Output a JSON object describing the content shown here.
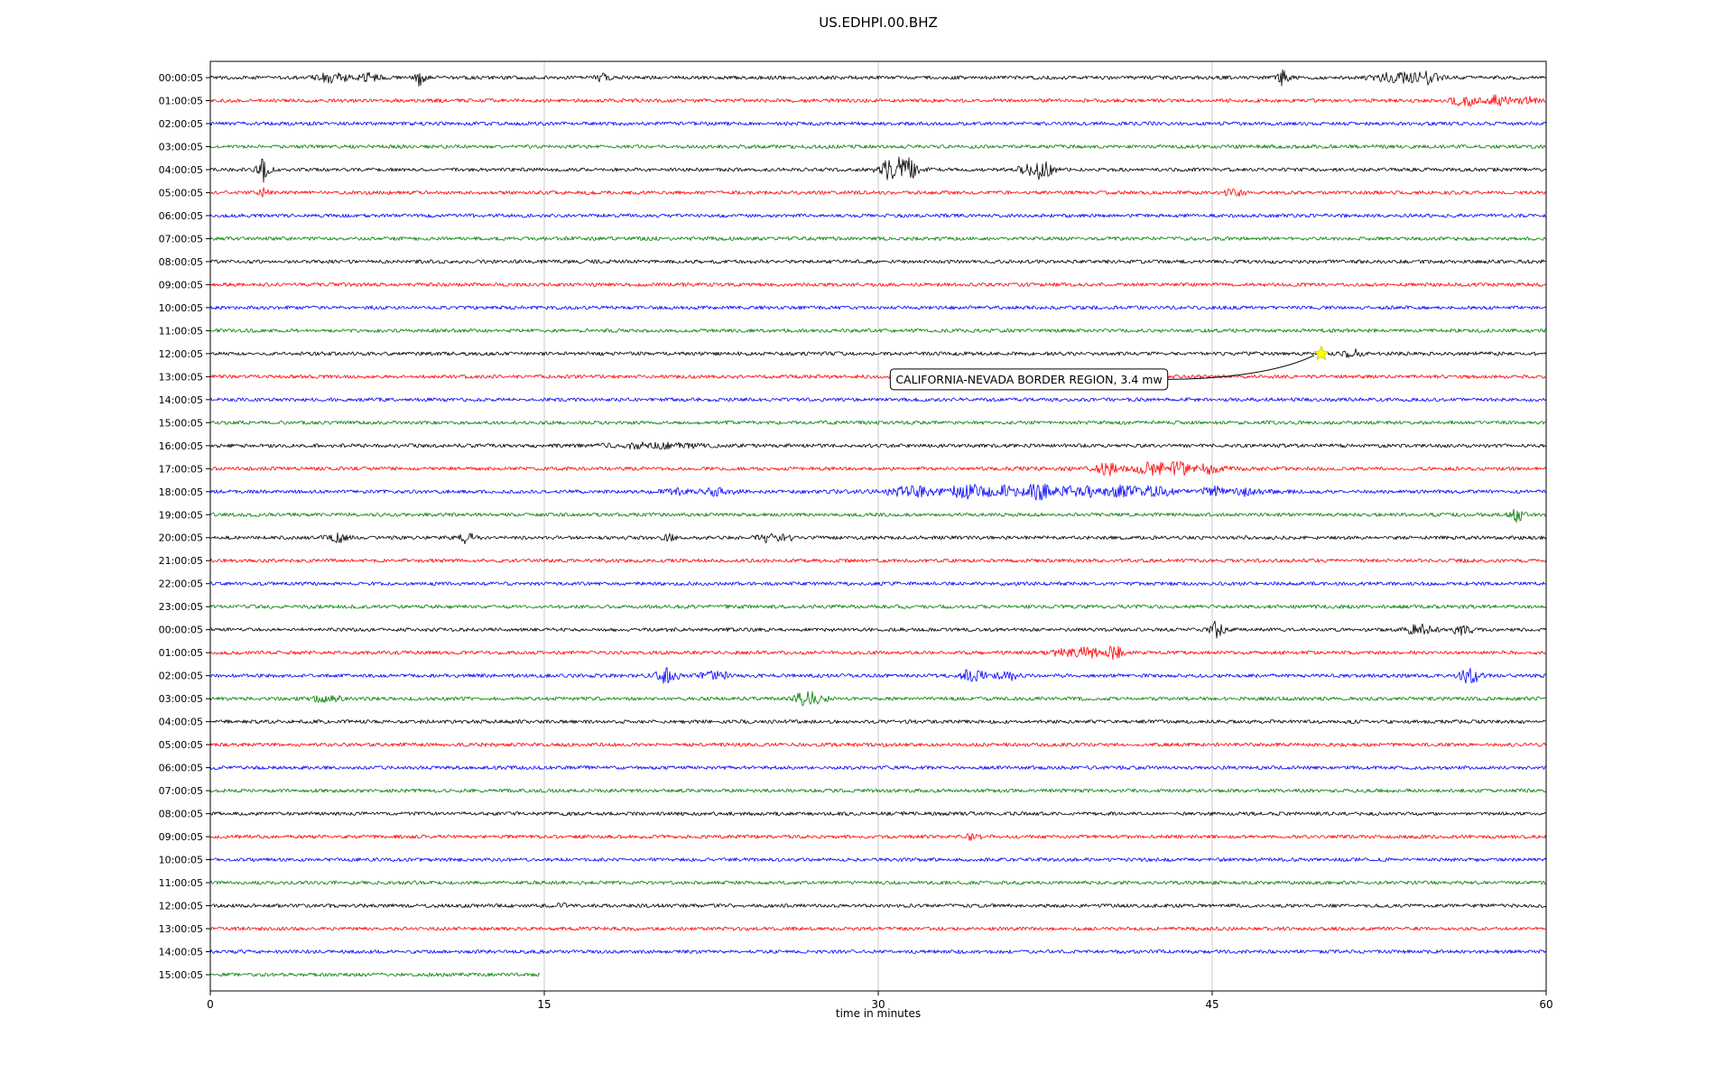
{
  "chart_data": {
    "type": "line",
    "subtype": "seismogram-dayplot",
    "title": "US.EDHPI.00.BHZ",
    "xlabel": "time in minutes",
    "xlim": [
      0,
      60
    ],
    "xticks": [
      0,
      15,
      30,
      45,
      60
    ],
    "gridlines": [
      15,
      30,
      45
    ],
    "grid_color": "#c8c8c8",
    "trace_colors_cycle": [
      "#000000",
      "#ff0000",
      "#0000ff",
      "#008000"
    ],
    "annotation": {
      "text": "CALIFORNIA-NEVADA BORDER REGION, 3.4 mw",
      "box_row": 13,
      "box_minute": 30.5,
      "star_row": 12,
      "star_minute": 49.9,
      "star_color": "#ffff00",
      "star_edge_color": "#c8c800"
    },
    "rows": [
      {
        "label": "00:00:05",
        "color": "#000000",
        "events": [
          {
            "m": 5.5,
            "a": 5,
            "w": 0.5
          },
          {
            "m": 7.2,
            "a": 4,
            "w": 0.3
          },
          {
            "m": 9.4,
            "a": 10,
            "w": 0.15
          },
          {
            "m": 17.6,
            "a": 3.5,
            "w": 0.2
          },
          {
            "m": 48.2,
            "a": 8,
            "w": 0.18
          },
          {
            "m": 53.3,
            "a": 5,
            "w": 0.7
          },
          {
            "m": 54.6,
            "a": 6,
            "w": 0.4
          }
        ]
      },
      {
        "label": "01:00:05",
        "color": "#ff0000",
        "events": [
          {
            "m": 56.3,
            "a": 6,
            "w": 0.35
          },
          {
            "m": 57.9,
            "a": 5,
            "w": 0.45
          },
          {
            "m": 59.2,
            "a": 3.5,
            "w": 0.3
          }
        ]
      },
      {
        "label": "02:00:05",
        "color": "#0000ff",
        "events": []
      },
      {
        "label": "03:00:05",
        "color": "#008000",
        "events": []
      },
      {
        "label": "04:00:05",
        "color": "#000000",
        "events": [
          {
            "m": 2.4,
            "a": 13,
            "w": 0.18
          },
          {
            "m": 30.7,
            "a": 12,
            "w": 0.45
          },
          {
            "m": 31.4,
            "a": 8,
            "w": 0.3
          },
          {
            "m": 36.9,
            "a": 8,
            "w": 0.35
          },
          {
            "m": 37.5,
            "a": 6,
            "w": 0.3
          }
        ]
      },
      {
        "label": "05:00:05",
        "color": "#ff0000",
        "events": [
          {
            "m": 2.4,
            "a": 4,
            "w": 0.15
          },
          {
            "m": 46.0,
            "a": 3.5,
            "w": 0.3
          }
        ]
      },
      {
        "label": "06:00:05",
        "color": "#0000ff",
        "events": []
      },
      {
        "label": "07:00:05",
        "color": "#008000",
        "events": []
      },
      {
        "label": "08:00:05",
        "color": "#000000",
        "events": []
      },
      {
        "label": "09:00:05",
        "color": "#ff0000",
        "events": []
      },
      {
        "label": "10:00:05",
        "color": "#0000ff",
        "events": []
      },
      {
        "label": "11:00:05",
        "color": "#008000",
        "events": []
      },
      {
        "label": "12:00:05",
        "color": "#000000",
        "events": [
          {
            "m": 51.3,
            "a": 4,
            "w": 0.3
          }
        ]
      },
      {
        "label": "13:00:05",
        "color": "#ff0000",
        "events": []
      },
      {
        "label": "14:00:05",
        "color": "#0000ff",
        "events": []
      },
      {
        "label": "15:00:05",
        "color": "#008000",
        "events": []
      },
      {
        "label": "16:00:05",
        "color": "#000000",
        "events": [
          {
            "m": 20.0,
            "a": 2.5,
            "w": 1.5
          }
        ]
      },
      {
        "label": "17:00:05",
        "color": "#ff0000",
        "events": [
          {
            "m": 40.3,
            "a": 7,
            "w": 0.25
          },
          {
            "m": 42.3,
            "a": 5,
            "w": 0.45
          },
          {
            "m": 43.5,
            "a": 6,
            "w": 0.3
          },
          {
            "m": 44.9,
            "a": 3.5,
            "w": 0.3
          },
          {
            "m": 43.0,
            "a": 1.5,
            "w": 3.0
          }
        ]
      },
      {
        "label": "18:00:05",
        "color": "#0000ff",
        "events": [
          {
            "m": 20.8,
            "a": 4,
            "w": 0.4
          },
          {
            "m": 22.8,
            "a": 3.5,
            "w": 0.5
          },
          {
            "m": 31.5,
            "a": 4,
            "w": 0.8
          },
          {
            "m": 34.0,
            "a": 6,
            "w": 0.5
          },
          {
            "m": 35.6,
            "a": 4,
            "w": 0.5
          },
          {
            "m": 37.2,
            "a": 6,
            "w": 0.45
          },
          {
            "m": 39.0,
            "a": 4,
            "w": 0.6
          },
          {
            "m": 41.0,
            "a": 4,
            "w": 0.5
          },
          {
            "m": 42.5,
            "a": 5,
            "w": 0.4
          },
          {
            "m": 45.0,
            "a": 4.5,
            "w": 0.4
          },
          {
            "m": 46.6,
            "a": 3.5,
            "w": 0.4
          },
          {
            "m": 38.0,
            "a": 2,
            "w": 5.0
          }
        ]
      },
      {
        "label": "19:00:05",
        "color": "#008000",
        "events": [
          {
            "m": 58.7,
            "a": 7,
            "w": 0.2
          }
        ]
      },
      {
        "label": "20:00:05",
        "color": "#000000",
        "events": [
          {
            "m": 5.7,
            "a": 4,
            "w": 0.35
          },
          {
            "m": 11.5,
            "a": 5,
            "w": 0.25
          },
          {
            "m": 20.6,
            "a": 3,
            "w": 0.2
          },
          {
            "m": 25.0,
            "a": 4,
            "w": 0.3
          },
          {
            "m": 25.9,
            "a": 4,
            "w": 0.25
          }
        ]
      },
      {
        "label": "21:00:05",
        "color": "#ff0000",
        "events": []
      },
      {
        "label": "22:00:05",
        "color": "#0000ff",
        "events": []
      },
      {
        "label": "23:00:05",
        "color": "#008000",
        "events": []
      },
      {
        "label": "00:00:05",
        "color": "#000000",
        "events": [
          {
            "m": 45.2,
            "a": 8,
            "w": 0.22
          },
          {
            "m": 54.3,
            "a": 5,
            "w": 0.45
          },
          {
            "m": 56.2,
            "a": 5,
            "w": 0.35
          }
        ]
      },
      {
        "label": "01:00:05",
        "color": "#ff0000",
        "events": [
          {
            "m": 38.5,
            "a": 4,
            "w": 0.5
          },
          {
            "m": 39.5,
            "a": 5,
            "w": 0.3
          },
          {
            "m": 40.6,
            "a": 8,
            "w": 0.22
          }
        ]
      },
      {
        "label": "02:00:05",
        "color": "#0000ff",
        "events": [
          {
            "m": 20.5,
            "a": 8,
            "w": 0.35
          },
          {
            "m": 22.7,
            "a": 4,
            "w": 0.5
          },
          {
            "m": 34.3,
            "a": 8,
            "w": 0.35
          },
          {
            "m": 35.8,
            "a": 5,
            "w": 0.3
          },
          {
            "m": 56.6,
            "a": 8,
            "w": 0.3
          }
        ]
      },
      {
        "label": "03:00:05",
        "color": "#008000",
        "events": [
          {
            "m": 5.3,
            "a": 3,
            "w": 0.5
          },
          {
            "m": 26.7,
            "a": 6,
            "w": 0.35
          },
          {
            "m": 27.3,
            "a": 4,
            "w": 0.3
          }
        ]
      },
      {
        "label": "04:00:05",
        "color": "#000000",
        "events": []
      },
      {
        "label": "05:00:05",
        "color": "#ff0000",
        "events": []
      },
      {
        "label": "06:00:05",
        "color": "#0000ff",
        "events": []
      },
      {
        "label": "07:00:05",
        "color": "#008000",
        "events": []
      },
      {
        "label": "08:00:05",
        "color": "#000000",
        "events": []
      },
      {
        "label": "09:00:05",
        "color": "#ff0000",
        "events": [
          {
            "m": 34.3,
            "a": 4,
            "w": 0.22
          }
        ]
      },
      {
        "label": "10:00:05",
        "color": "#0000ff",
        "events": []
      },
      {
        "label": "11:00:05",
        "color": "#008000",
        "events": []
      },
      {
        "label": "12:00:05",
        "color": "#000000",
        "events": [
          {
            "m": 15.8,
            "a": 2.5,
            "w": 0.15
          }
        ]
      },
      {
        "label": "13:00:05",
        "color": "#ff0000",
        "events": []
      },
      {
        "label": "14:00:05",
        "color": "#0000ff",
        "events": []
      },
      {
        "label": "15:00:05",
        "color": "#008000",
        "events": [],
        "xmax": 14.8
      }
    ]
  }
}
